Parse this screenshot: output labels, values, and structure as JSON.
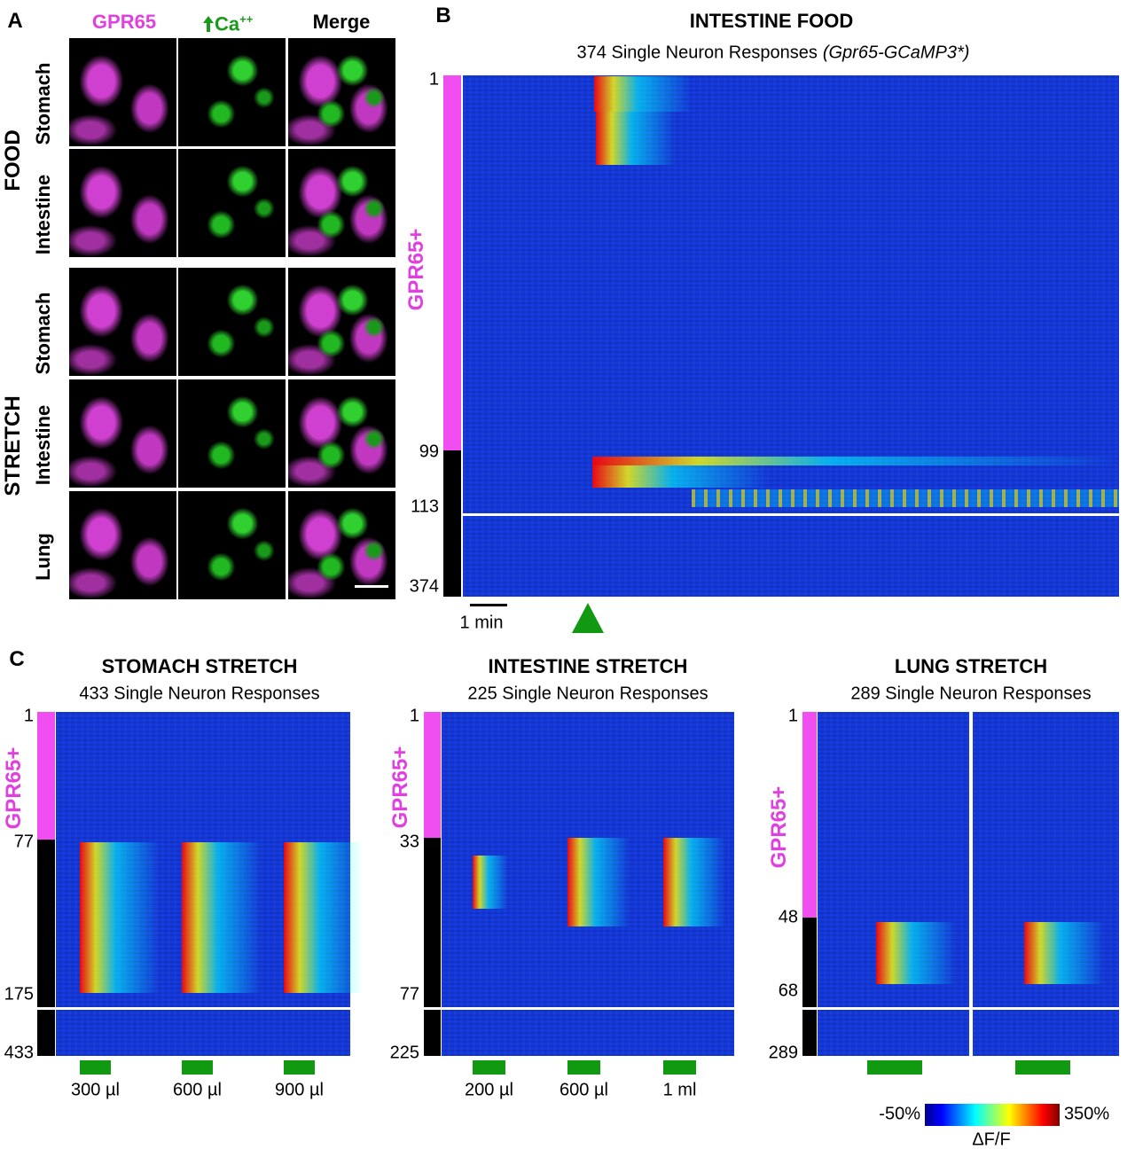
{
  "panel_a": {
    "label": "A",
    "columns": [
      "GPR65",
      {
        "text": "Ca",
        "superscript": "++"
      },
      "Merge"
    ],
    "groups": [
      {
        "name": "FOOD",
        "rows": [
          "Stomach",
          "Intestine"
        ]
      },
      {
        "name": "STRETCH",
        "rows": [
          "Stomach",
          "Intestine",
          "Lung"
        ]
      }
    ]
  },
  "panel_b": {
    "label": "B",
    "title": "INTESTINE FOOD",
    "subtitle": "374 Single Neuron Responses",
    "subtitle_italic": "(Gpr65-GCaMP3*)",
    "side_label": "GPR65+",
    "row_ticks": [
      "1",
      "99",
      "113",
      "374"
    ],
    "scale_bar": "1 min"
  },
  "panel_c": {
    "label": "C",
    "heatmaps": [
      {
        "title": "STOMACH STRETCH",
        "subtitle": "433 Single Neuron Responses",
        "side_label": "GPR65+",
        "row_ticks": [
          "1",
          "77",
          "175",
          "433"
        ],
        "stimuli": [
          "300 µl",
          "600 µl",
          "900 µl"
        ]
      },
      {
        "title": "INTESTINE STRETCH",
        "subtitle": "225 Single Neuron Responses",
        "side_label": "GPR65+",
        "row_ticks": [
          "1",
          "33",
          "77",
          "225"
        ],
        "stimuli": [
          "200 µl",
          "600 µl",
          "1 ml"
        ]
      },
      {
        "title": "LUNG STRETCH",
        "subtitle": "289 Single Neuron Responses",
        "side_label": "GPR65+",
        "row_ticks": [
          "1",
          "48",
          "68",
          "289"
        ]
      }
    ]
  },
  "colorbar": {
    "min_label": "-50%",
    "max_label": "350%",
    "label": "ΔF/F"
  }
}
